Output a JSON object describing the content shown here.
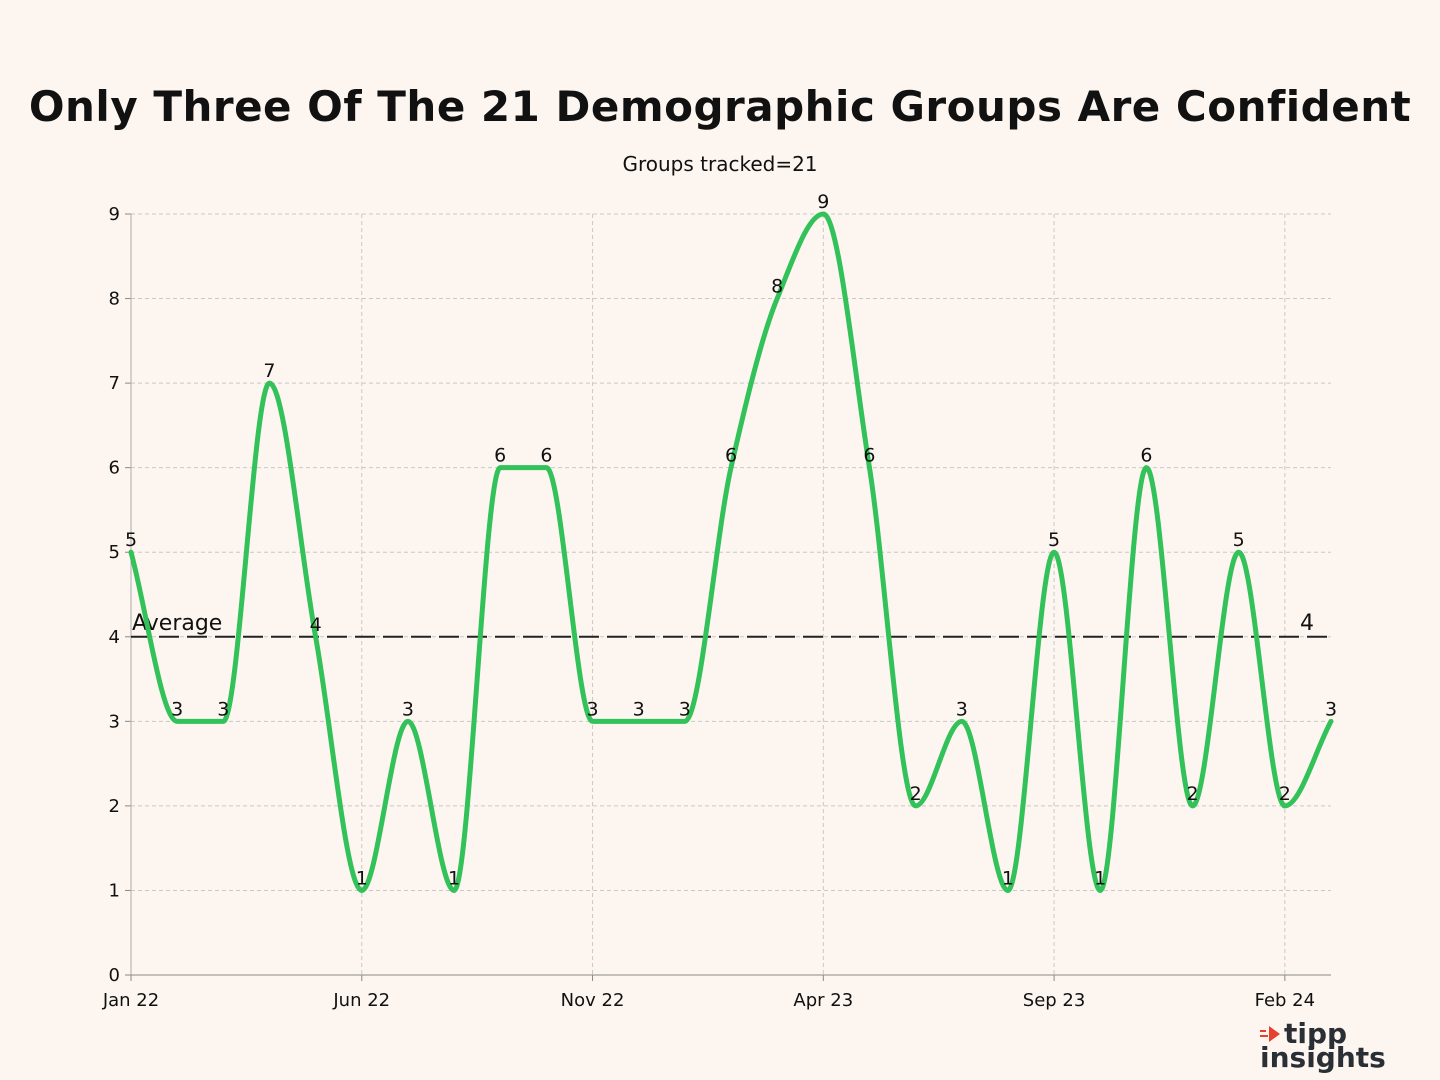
{
  "chart_data": {
    "type": "line",
    "title": "Only Three Of The 21 Demographic Groups Are Confident",
    "subtitle": "Groups tracked=21",
    "x": [
      "Jan 22",
      "Feb 22",
      "Mar 22",
      "Apr 22",
      "May 22",
      "Jun 22",
      "Jul 22",
      "Aug 22",
      "Sep 22",
      "Oct 22",
      "Nov 22",
      "Dec 22",
      "Jan 23",
      "Feb 23",
      "Mar 23",
      "Apr 23",
      "May 23",
      "Jun 23",
      "Jul 23",
      "Aug 23",
      "Sep 23",
      "Oct 23",
      "Nov 23",
      "Dec 23",
      "Jan 24",
      "Feb 24",
      "Mar 24"
    ],
    "values": [
      5,
      3,
      3,
      7,
      4,
      1,
      3,
      1,
      6,
      6,
      3,
      3,
      3,
      6,
      8,
      9,
      6,
      2,
      3,
      1,
      5,
      1,
      6,
      2,
      5,
      2,
      3
    ],
    "x_tick_labels": [
      "Jan 22",
      "Jun 22",
      "Nov 22",
      "Apr 23",
      "Sep 23",
      "Feb 24"
    ],
    "x_tick_indices": [
      0,
      5,
      10,
      15,
      20,
      25
    ],
    "ylim": [
      0,
      9
    ],
    "y_ticks": [
      0,
      1,
      2,
      3,
      4,
      5,
      6,
      7,
      8,
      9
    ],
    "average": {
      "label": "Average",
      "value": 4,
      "value_label": "4"
    },
    "grid": true,
    "colors": {
      "line": "#33c15a",
      "average": "#222222",
      "grid": "#c8c8c8",
      "background": "#fdf6f0"
    }
  },
  "brand": {
    "line1": "tipp",
    "line2": "insights",
    "mark_color": "#e8402f",
    "text_color": "#2a2f36"
  }
}
